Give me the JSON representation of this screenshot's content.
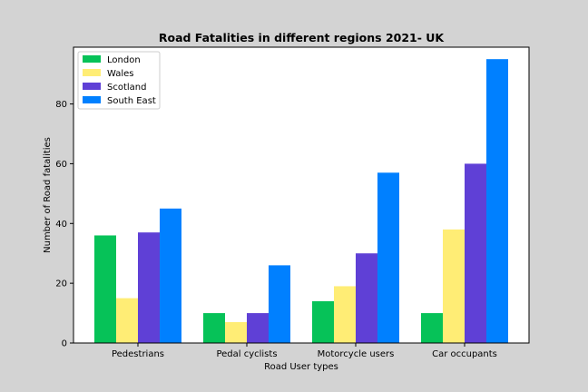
{
  "chart_data": {
    "type": "bar",
    "title": "Road Fatalities in different regions 2021- UK",
    "xlabel": "Road User types",
    "ylabel": "Number of Road fatalities",
    "categories": [
      "Pedestrians",
      "Pedal cyclists",
      "Motorcycle users",
      "Car occupants"
    ],
    "series": [
      {
        "name": "London",
        "color": "#06c258",
        "values": [
          36,
          10,
          14,
          10
        ]
      },
      {
        "name": "Wales",
        "color": "#ffed75",
        "values": [
          15,
          7,
          19,
          38
        ]
      },
      {
        "name": "Scotland",
        "color": "#5f40d6",
        "values": [
          37,
          10,
          30,
          60
        ]
      },
      {
        "name": "South East",
        "color": "#0080ff",
        "values": [
          45,
          26,
          57,
          95
        ]
      }
    ],
    "ylim": [
      0,
      99
    ],
    "yticks": [
      0,
      20,
      40,
      60,
      80
    ],
    "grid": false,
    "legend_position": "top-left"
  }
}
